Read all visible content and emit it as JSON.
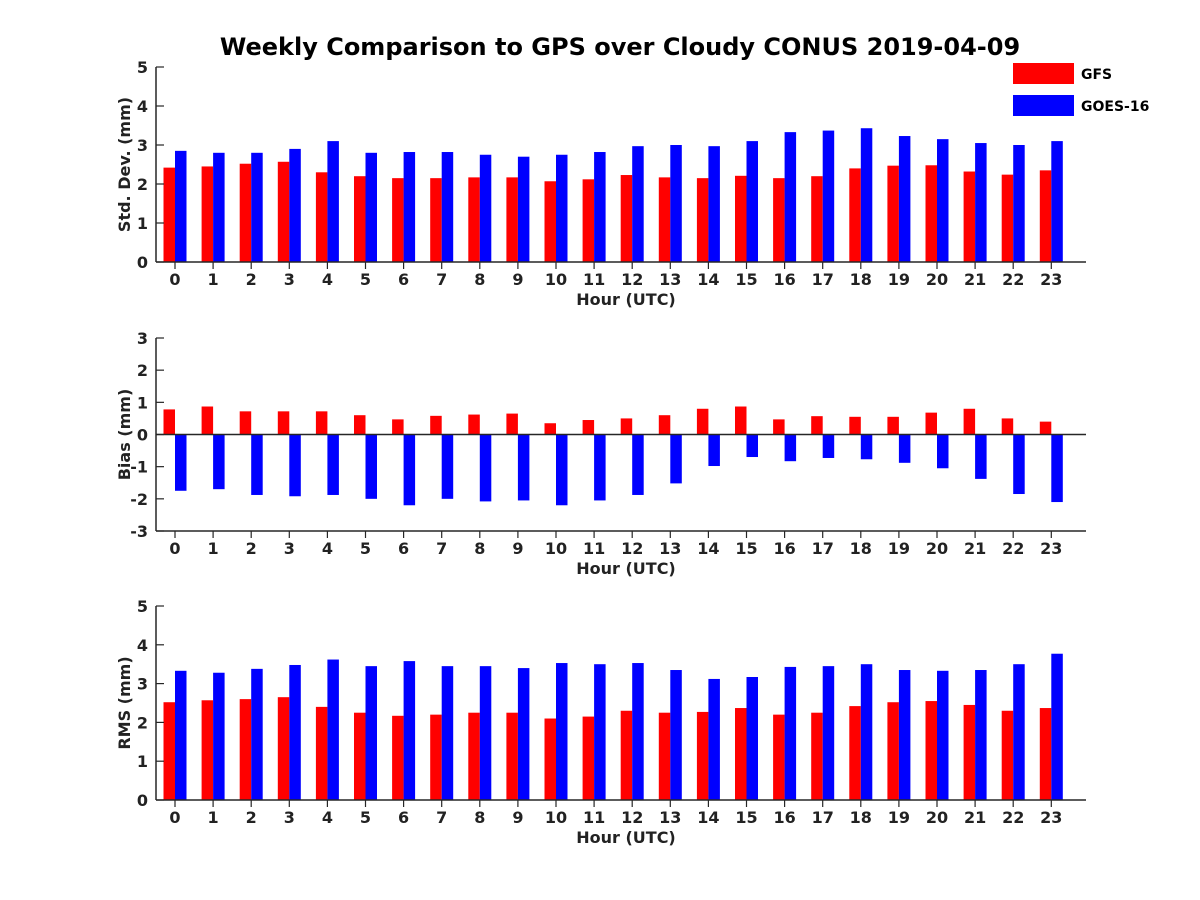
{
  "title": "Weekly Comparison to GPS over Cloudy CONUS 2019-04-09",
  "colors": {
    "GFS": "#ff0000",
    "GOES-16": "#0000ff"
  },
  "legend": {
    "placement": "top-right",
    "items": [
      "GFS",
      "GOES-16"
    ]
  },
  "chart_data": [
    {
      "type": "bar",
      "ylabel": "Std. Dev. (mm)",
      "xlabel": "Hour (UTC)",
      "ylim": [
        0,
        5
      ],
      "yticks": [
        0,
        1,
        2,
        3,
        4,
        5
      ],
      "categories": [
        "0",
        "1",
        "2",
        "3",
        "4",
        "5",
        "6",
        "7",
        "8",
        "9",
        "10",
        "11",
        "12",
        "13",
        "14",
        "15",
        "16",
        "17",
        "18",
        "19",
        "20",
        "21",
        "22",
        "23"
      ],
      "series": [
        {
          "name": "GFS",
          "values": [
            2.42,
            2.45,
            2.52,
            2.57,
            2.3,
            2.2,
            2.15,
            2.15,
            2.17,
            2.17,
            2.07,
            2.12,
            2.23,
            2.17,
            2.15,
            2.21,
            2.15,
            2.2,
            2.4,
            2.47,
            2.48,
            2.32,
            2.24,
            2.35
          ]
        },
        {
          "name": "GOES-16",
          "values": [
            2.85,
            2.8,
            2.8,
            2.9,
            3.1,
            2.8,
            2.82,
            2.82,
            2.75,
            2.7,
            2.75,
            2.82,
            2.97,
            3.0,
            2.97,
            3.1,
            3.33,
            3.37,
            3.43,
            3.23,
            3.15,
            3.05,
            3.0,
            3.1
          ]
        }
      ]
    },
    {
      "type": "bar",
      "ylabel": "Bias (mm)",
      "xlabel": "Hour (UTC)",
      "ylim": [
        -3,
        3
      ],
      "yticks": [
        -3,
        -2,
        -1,
        0,
        1,
        2,
        3
      ],
      "categories": [
        "0",
        "1",
        "2",
        "3",
        "4",
        "5",
        "6",
        "7",
        "8",
        "9",
        "10",
        "11",
        "12",
        "13",
        "14",
        "15",
        "16",
        "17",
        "18",
        "19",
        "20",
        "21",
        "22",
        "23"
      ],
      "series": [
        {
          "name": "GFS",
          "values": [
            0.78,
            0.87,
            0.72,
            0.72,
            0.72,
            0.6,
            0.47,
            0.58,
            0.62,
            0.65,
            0.35,
            0.45,
            0.5,
            0.6,
            0.8,
            0.87,
            0.47,
            0.57,
            0.55,
            0.55,
            0.68,
            0.8,
            0.5,
            0.4
          ]
        },
        {
          "name": "GOES-16",
          "values": [
            -1.75,
            -1.7,
            -1.88,
            -1.92,
            -1.88,
            -2.0,
            -2.2,
            -2.0,
            -2.08,
            -2.05,
            -2.2,
            -2.05,
            -1.88,
            -1.52,
            -0.98,
            -0.7,
            -0.83,
            -0.73,
            -0.77,
            -0.88,
            -1.05,
            -1.38,
            -1.85,
            -2.1
          ]
        }
      ]
    },
    {
      "type": "bar",
      "ylabel": "RMS (mm)",
      "xlabel": "Hour (UTC)",
      "ylim": [
        0,
        5
      ],
      "yticks": [
        0,
        1,
        2,
        3,
        4,
        5
      ],
      "categories": [
        "0",
        "1",
        "2",
        "3",
        "4",
        "5",
        "6",
        "7",
        "8",
        "9",
        "10",
        "11",
        "12",
        "13",
        "14",
        "15",
        "16",
        "17",
        "18",
        "19",
        "20",
        "21",
        "22",
        "23"
      ],
      "series": [
        {
          "name": "GFS",
          "values": [
            2.52,
            2.57,
            2.6,
            2.65,
            2.4,
            2.25,
            2.17,
            2.2,
            2.25,
            2.25,
            2.1,
            2.15,
            2.3,
            2.25,
            2.27,
            2.37,
            2.2,
            2.25,
            2.42,
            2.52,
            2.55,
            2.45,
            2.3,
            2.37
          ]
        },
        {
          "name": "GOES-16",
          "values": [
            3.33,
            3.28,
            3.38,
            3.48,
            3.62,
            3.45,
            3.58,
            3.45,
            3.45,
            3.4,
            3.53,
            3.5,
            3.53,
            3.35,
            3.12,
            3.17,
            3.43,
            3.45,
            3.5,
            3.35,
            3.33,
            3.35,
            3.5,
            3.77
          ]
        }
      ]
    }
  ]
}
